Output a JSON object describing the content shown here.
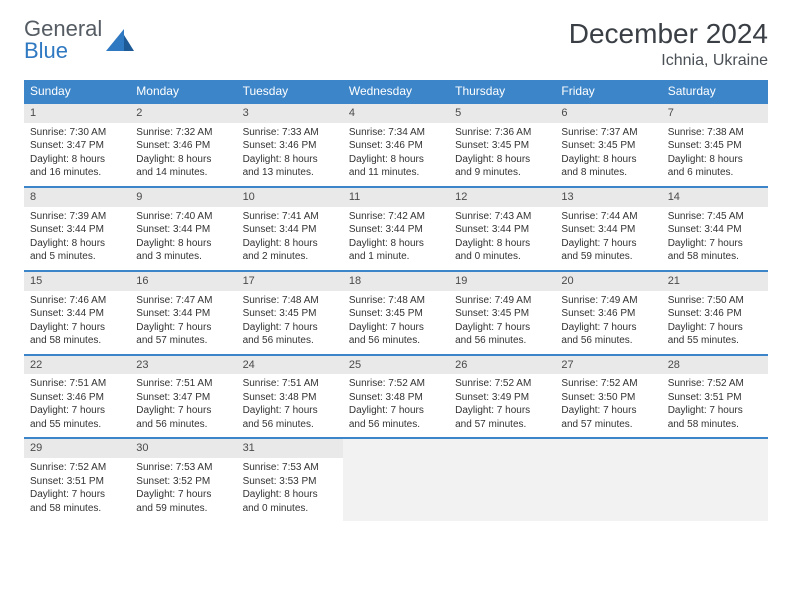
{
  "logo": {
    "text_gray": "General",
    "text_blue": "Blue"
  },
  "title": "December 2024",
  "location": "Ichnia, Ukraine",
  "colors": {
    "header_bg": "#3c85c8",
    "header_text": "#ffffff",
    "daynum_bg": "#e9e9e9",
    "week_border": "#3c85c8",
    "logo_gray": "#555c63",
    "logo_blue": "#2f78c2",
    "title_color": "#3a3f45"
  },
  "weekdays": [
    "Sunday",
    "Monday",
    "Tuesday",
    "Wednesday",
    "Thursday",
    "Friday",
    "Saturday"
  ],
  "weeks": [
    [
      {
        "n": "1",
        "sunrise": "Sunrise: 7:30 AM",
        "sunset": "Sunset: 3:47 PM",
        "daylight": "Daylight: 8 hours and 16 minutes."
      },
      {
        "n": "2",
        "sunrise": "Sunrise: 7:32 AM",
        "sunset": "Sunset: 3:46 PM",
        "daylight": "Daylight: 8 hours and 14 minutes."
      },
      {
        "n": "3",
        "sunrise": "Sunrise: 7:33 AM",
        "sunset": "Sunset: 3:46 PM",
        "daylight": "Daylight: 8 hours and 13 minutes."
      },
      {
        "n": "4",
        "sunrise": "Sunrise: 7:34 AM",
        "sunset": "Sunset: 3:46 PM",
        "daylight": "Daylight: 8 hours and 11 minutes."
      },
      {
        "n": "5",
        "sunrise": "Sunrise: 7:36 AM",
        "sunset": "Sunset: 3:45 PM",
        "daylight": "Daylight: 8 hours and 9 minutes."
      },
      {
        "n": "6",
        "sunrise": "Sunrise: 7:37 AM",
        "sunset": "Sunset: 3:45 PM",
        "daylight": "Daylight: 8 hours and 8 minutes."
      },
      {
        "n": "7",
        "sunrise": "Sunrise: 7:38 AM",
        "sunset": "Sunset: 3:45 PM",
        "daylight": "Daylight: 8 hours and 6 minutes."
      }
    ],
    [
      {
        "n": "8",
        "sunrise": "Sunrise: 7:39 AM",
        "sunset": "Sunset: 3:44 PM",
        "daylight": "Daylight: 8 hours and 5 minutes."
      },
      {
        "n": "9",
        "sunrise": "Sunrise: 7:40 AM",
        "sunset": "Sunset: 3:44 PM",
        "daylight": "Daylight: 8 hours and 3 minutes."
      },
      {
        "n": "10",
        "sunrise": "Sunrise: 7:41 AM",
        "sunset": "Sunset: 3:44 PM",
        "daylight": "Daylight: 8 hours and 2 minutes."
      },
      {
        "n": "11",
        "sunrise": "Sunrise: 7:42 AM",
        "sunset": "Sunset: 3:44 PM",
        "daylight": "Daylight: 8 hours and 1 minute."
      },
      {
        "n": "12",
        "sunrise": "Sunrise: 7:43 AM",
        "sunset": "Sunset: 3:44 PM",
        "daylight": "Daylight: 8 hours and 0 minutes."
      },
      {
        "n": "13",
        "sunrise": "Sunrise: 7:44 AM",
        "sunset": "Sunset: 3:44 PM",
        "daylight": "Daylight: 7 hours and 59 minutes."
      },
      {
        "n": "14",
        "sunrise": "Sunrise: 7:45 AM",
        "sunset": "Sunset: 3:44 PM",
        "daylight": "Daylight: 7 hours and 58 minutes."
      }
    ],
    [
      {
        "n": "15",
        "sunrise": "Sunrise: 7:46 AM",
        "sunset": "Sunset: 3:44 PM",
        "daylight": "Daylight: 7 hours and 58 minutes."
      },
      {
        "n": "16",
        "sunrise": "Sunrise: 7:47 AM",
        "sunset": "Sunset: 3:44 PM",
        "daylight": "Daylight: 7 hours and 57 minutes."
      },
      {
        "n": "17",
        "sunrise": "Sunrise: 7:48 AM",
        "sunset": "Sunset: 3:45 PM",
        "daylight": "Daylight: 7 hours and 56 minutes."
      },
      {
        "n": "18",
        "sunrise": "Sunrise: 7:48 AM",
        "sunset": "Sunset: 3:45 PM",
        "daylight": "Daylight: 7 hours and 56 minutes."
      },
      {
        "n": "19",
        "sunrise": "Sunrise: 7:49 AM",
        "sunset": "Sunset: 3:45 PM",
        "daylight": "Daylight: 7 hours and 56 minutes."
      },
      {
        "n": "20",
        "sunrise": "Sunrise: 7:49 AM",
        "sunset": "Sunset: 3:46 PM",
        "daylight": "Daylight: 7 hours and 56 minutes."
      },
      {
        "n": "21",
        "sunrise": "Sunrise: 7:50 AM",
        "sunset": "Sunset: 3:46 PM",
        "daylight": "Daylight: 7 hours and 55 minutes."
      }
    ],
    [
      {
        "n": "22",
        "sunrise": "Sunrise: 7:51 AM",
        "sunset": "Sunset: 3:46 PM",
        "daylight": "Daylight: 7 hours and 55 minutes."
      },
      {
        "n": "23",
        "sunrise": "Sunrise: 7:51 AM",
        "sunset": "Sunset: 3:47 PM",
        "daylight": "Daylight: 7 hours and 56 minutes."
      },
      {
        "n": "24",
        "sunrise": "Sunrise: 7:51 AM",
        "sunset": "Sunset: 3:48 PM",
        "daylight": "Daylight: 7 hours and 56 minutes."
      },
      {
        "n": "25",
        "sunrise": "Sunrise: 7:52 AM",
        "sunset": "Sunset: 3:48 PM",
        "daylight": "Daylight: 7 hours and 56 minutes."
      },
      {
        "n": "26",
        "sunrise": "Sunrise: 7:52 AM",
        "sunset": "Sunset: 3:49 PM",
        "daylight": "Daylight: 7 hours and 57 minutes."
      },
      {
        "n": "27",
        "sunrise": "Sunrise: 7:52 AM",
        "sunset": "Sunset: 3:50 PM",
        "daylight": "Daylight: 7 hours and 57 minutes."
      },
      {
        "n": "28",
        "sunrise": "Sunrise: 7:52 AM",
        "sunset": "Sunset: 3:51 PM",
        "daylight": "Daylight: 7 hours and 58 minutes."
      }
    ],
    [
      {
        "n": "29",
        "sunrise": "Sunrise: 7:52 AM",
        "sunset": "Sunset: 3:51 PM",
        "daylight": "Daylight: 7 hours and 58 minutes."
      },
      {
        "n": "30",
        "sunrise": "Sunrise: 7:53 AM",
        "sunset": "Sunset: 3:52 PM",
        "daylight": "Daylight: 7 hours and 59 minutes."
      },
      {
        "n": "31",
        "sunrise": "Sunrise: 7:53 AM",
        "sunset": "Sunset: 3:53 PM",
        "daylight": "Daylight: 8 hours and 0 minutes."
      },
      null,
      null,
      null,
      null
    ]
  ]
}
